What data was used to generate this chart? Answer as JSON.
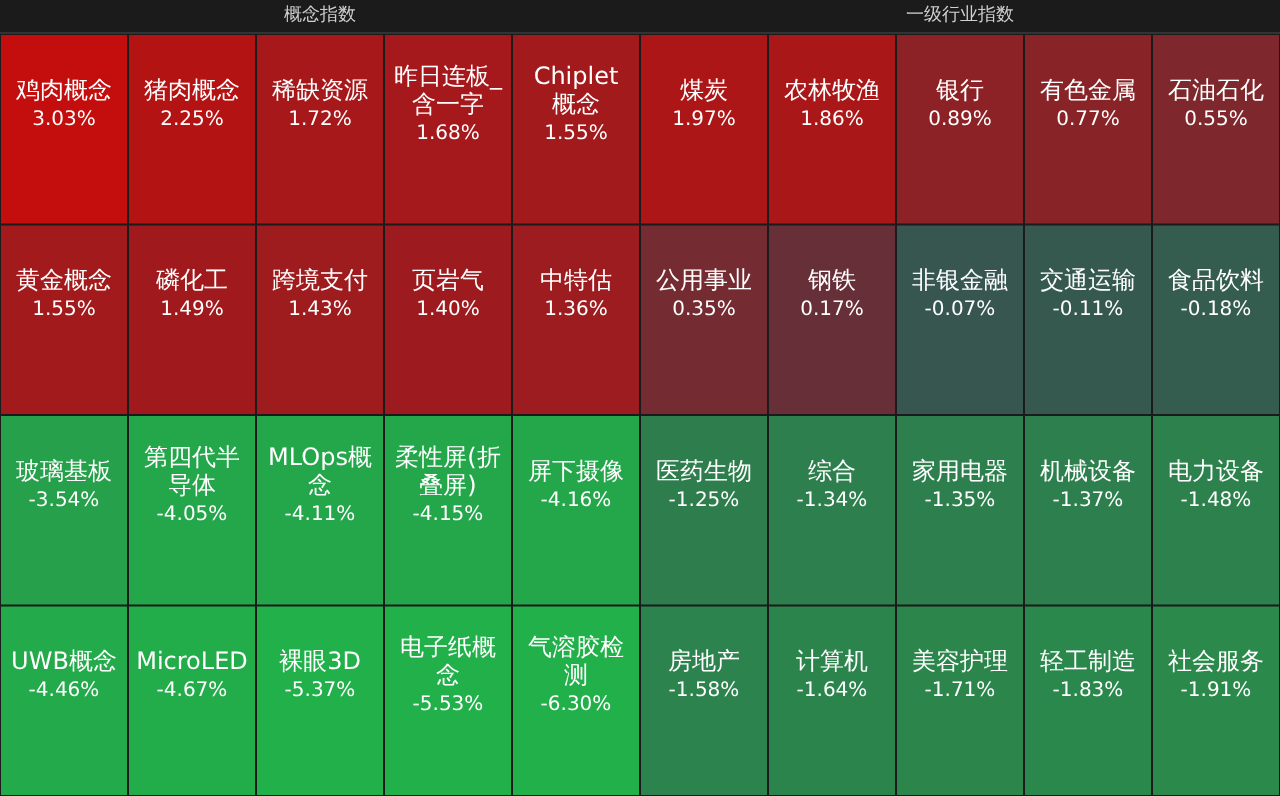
{
  "chart_data": [
    {
      "type": "other",
      "title": "概念指数",
      "categories": [
        "鸡肉概念",
        "猪肉概念",
        "稀缺资源",
        "昨日连板_含一字",
        "Chiplet概念",
        "黄金概念",
        "磷化工",
        "跨境支付",
        "页岩气",
        "中特估",
        "玻璃基板",
        "第四代半导体",
        "MLOps概念",
        "柔性屏(折叠屏)",
        "屏下摄像",
        "UWB概念",
        "MicroLED",
        "裸眼3D",
        "电子纸概念",
        "气溶胶检测"
      ],
      "values": [
        3.03,
        2.25,
        1.72,
        1.68,
        1.55,
        1.55,
        1.49,
        1.43,
        1.4,
        1.36,
        -3.54,
        -4.05,
        -4.11,
        -4.15,
        -4.16,
        -4.46,
        -4.67,
        -5.37,
        -5.53,
        -6.3
      ],
      "value_labels": [
        "3.03%",
        "2.25%",
        "1.72%",
        "1.68%",
        "1.55%",
        "1.55%",
        "1.49%",
        "1.43%",
        "1.40%",
        "1.36%",
        "-3.54%",
        "-4.05%",
        "-4.11%",
        "-4.15%",
        "-4.16%",
        "-4.46%",
        "-4.67%",
        "-5.37%",
        "-5.53%",
        "-6.30%"
      ]
    },
    {
      "type": "other",
      "title": "一级行业指数",
      "categories": [
        "煤炭",
        "农林牧渔",
        "银行",
        "有色金属",
        "石油石化",
        "公用事业",
        "钢铁",
        "非银金融",
        "交通运输",
        "食品饮料",
        "医药生物",
        "综合",
        "家用电器",
        "机械设备",
        "电力设备",
        "房地产",
        "计算机",
        "美容护理",
        "轻工制造",
        "社会服务"
      ],
      "values": [
        1.97,
        1.86,
        0.89,
        0.77,
        0.55,
        0.35,
        0.17,
        -0.07,
        -0.11,
        -0.18,
        -1.25,
        -1.34,
        -1.35,
        -1.37,
        -1.48,
        -1.58,
        -1.64,
        -1.71,
        -1.83,
        -1.91
      ],
      "value_labels": [
        "1.97%",
        "1.86%",
        "0.89%",
        "0.77%",
        "0.55%",
        "0.35%",
        "0.17%",
        "-0.07%",
        "-0.11%",
        "-0.18%",
        "-1.25%",
        "-1.34%",
        "-1.35%",
        "-1.37%",
        "-1.48%",
        "-1.58%",
        "-1.64%",
        "-1.71%",
        "-1.83%",
        "-1.91%"
      ]
    }
  ]
}
